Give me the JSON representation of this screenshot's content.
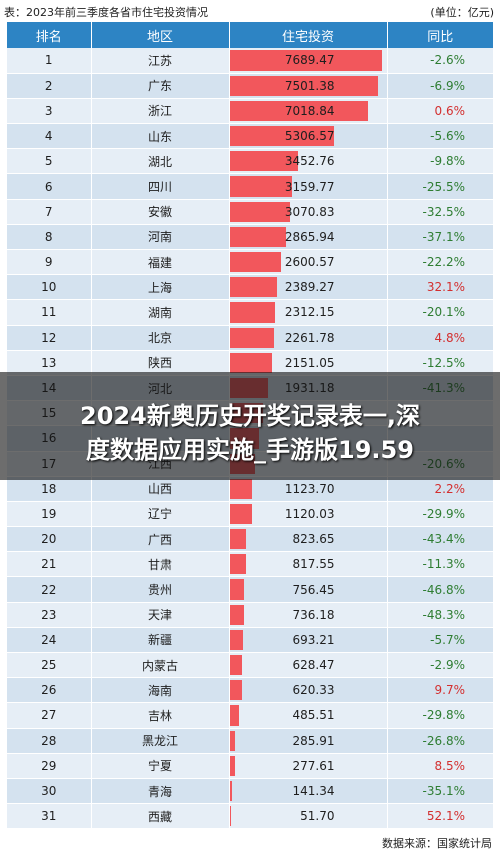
{
  "header": {
    "title": "表：2023年前三季度各省市住宅投资情况",
    "unit": "(单位：亿元)"
  },
  "columns": [
    "排名",
    "地区",
    "住宅投资",
    "同比"
  ],
  "banner": {
    "line1": "2024新奥历史开奖记录表一,深",
    "line2": "度数据应用实施_手游版19.59"
  },
  "footer": {
    "source": "数据来源：国家统计局"
  },
  "colors": {
    "header_bg": "#2d84c4",
    "bar": "#f2575c",
    "negative": "#2e7d32",
    "positive": "#d32f2f"
  },
  "chart_data": {
    "type": "table",
    "title": "表：2023年前三季度各省市住宅投资情况",
    "unit": "(单位：亿元)",
    "columns": [
      "排名",
      "地区",
      "住宅投资",
      "同比"
    ],
    "bar_max": 7689.47,
    "rows": [
      {
        "rank": "1",
        "region": "江苏",
        "value": 7689.47,
        "value_label": "7689.47",
        "yoy": "-2.6%"
      },
      {
        "rank": "2",
        "region": "广东",
        "value": 7501.38,
        "value_label": "7501.38",
        "yoy": "-6.9%"
      },
      {
        "rank": "3",
        "region": "浙江",
        "value": 7018.84,
        "value_label": "7018.84",
        "yoy": "0.6%"
      },
      {
        "rank": "4",
        "region": "山东",
        "value": 5306.57,
        "value_label": "5306.57",
        "yoy": "-5.6%"
      },
      {
        "rank": "5",
        "region": "湖北",
        "value": 3452.76,
        "value_label": "3452.76",
        "yoy": "-9.8%"
      },
      {
        "rank": "6",
        "region": "四川",
        "value": 3159.77,
        "value_label": "3159.77",
        "yoy": "-25.5%"
      },
      {
        "rank": "7",
        "region": "安徽",
        "value": 3070.83,
        "value_label": "3070.83",
        "yoy": "-32.5%"
      },
      {
        "rank": "8",
        "region": "河南",
        "value": 2865.94,
        "value_label": "2865.94",
        "yoy": "-37.1%"
      },
      {
        "rank": "9",
        "region": "福建",
        "value": 2600.57,
        "value_label": "2600.57",
        "yoy": "-22.2%"
      },
      {
        "rank": "10",
        "region": "上海",
        "value": 2389.27,
        "value_label": "2389.27",
        "yoy": "32.1%"
      },
      {
        "rank": "11",
        "region": "湖南",
        "value": 2312.15,
        "value_label": "2312.15",
        "yoy": "-20.1%"
      },
      {
        "rank": "12",
        "region": "北京",
        "value": 2261.78,
        "value_label": "2261.78",
        "yoy": "4.8%"
      },
      {
        "rank": "13",
        "region": "陕西",
        "value": 2151.05,
        "value_label": "2151.05",
        "yoy": "-12.5%"
      },
      {
        "rank": "14",
        "region": "河北",
        "value": 1931.18,
        "value_label": "1931.18",
        "yoy": "-41.3%"
      },
      {
        "rank": "15",
        "region": "",
        "value": 1700,
        "value_label": "",
        "yoy": ""
      },
      {
        "rank": "16",
        "region": "",
        "value": 1500,
        "value_label": "",
        "yoy": ""
      },
      {
        "rank": "17",
        "region": "江西",
        "value": 1300,
        "value_label": "",
        "yoy": "-20.6%"
      },
      {
        "rank": "18",
        "region": "山西",
        "value": 1123.7,
        "value_label": "1123.70",
        "yoy": "2.2%"
      },
      {
        "rank": "19",
        "region": "辽宁",
        "value": 1120.03,
        "value_label": "1120.03",
        "yoy": "-29.9%"
      },
      {
        "rank": "20",
        "region": "广西",
        "value": 823.65,
        "value_label": "823.65",
        "yoy": "-43.4%"
      },
      {
        "rank": "21",
        "region": "甘肃",
        "value": 817.55,
        "value_label": "817.55",
        "yoy": "-11.3%"
      },
      {
        "rank": "22",
        "region": "贵州",
        "value": 756.45,
        "value_label": "756.45",
        "yoy": "-46.8%"
      },
      {
        "rank": "23",
        "region": "天津",
        "value": 736.18,
        "value_label": "736.18",
        "yoy": "-48.3%"
      },
      {
        "rank": "24",
        "region": "新疆",
        "value": 693.21,
        "value_label": "693.21",
        "yoy": "-5.7%"
      },
      {
        "rank": "25",
        "region": "内蒙古",
        "value": 628.47,
        "value_label": "628.47",
        "yoy": "-2.9%"
      },
      {
        "rank": "26",
        "region": "海南",
        "value": 620.33,
        "value_label": "620.33",
        "yoy": "9.7%"
      },
      {
        "rank": "27",
        "region": "吉林",
        "value": 485.51,
        "value_label": "485.51",
        "yoy": "-29.8%"
      },
      {
        "rank": "28",
        "region": "黑龙江",
        "value": 285.91,
        "value_label": "285.91",
        "yoy": "-26.8%"
      },
      {
        "rank": "29",
        "region": "宁夏",
        "value": 277.61,
        "value_label": "277.61",
        "yoy": "8.5%"
      },
      {
        "rank": "30",
        "region": "青海",
        "value": 141.34,
        "value_label": "141.34",
        "yoy": "-35.1%"
      },
      {
        "rank": "31",
        "region": "西藏",
        "value": 51.7,
        "value_label": "51.70",
        "yoy": "52.1%"
      }
    ]
  }
}
